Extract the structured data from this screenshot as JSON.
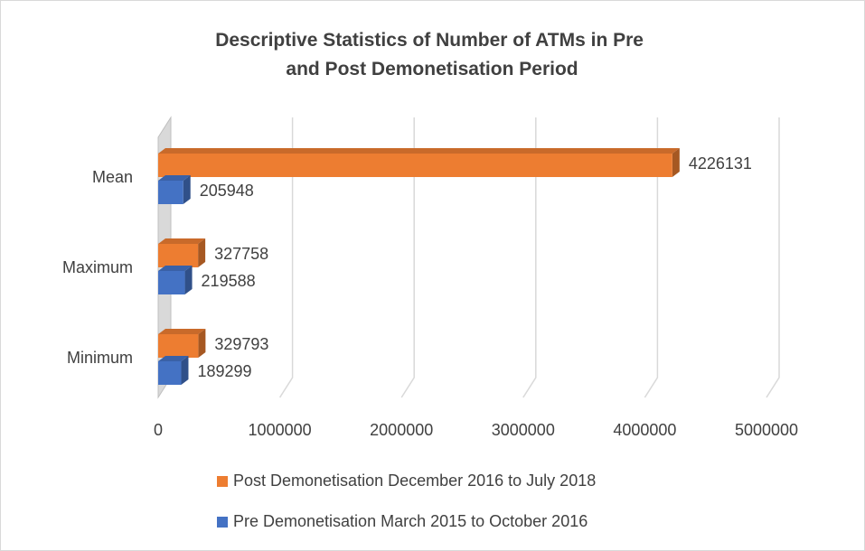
{
  "chart_data": {
    "type": "bar3d_horizontal",
    "title": "Descriptive Statistics of Number of ATMs in Pre and Post Demonetisation Period",
    "categories": [
      "Mean",
      "Maximum",
      "Minimum"
    ],
    "series": [
      {
        "name": "Post Demonetisation December 2016 to July 2018",
        "color": "#ed7d31",
        "values": [
          4226131,
          327758,
          329793
        ]
      },
      {
        "name": "Pre Demonetisation March 2015 to October 2016",
        "color": "#4472c4",
        "values": [
          205948,
          219588,
          189299
        ]
      }
    ],
    "xlim": [
      0,
      5000000
    ],
    "xticks": [
      0,
      1000000,
      2000000,
      3000000,
      4000000,
      5000000
    ],
    "grid": true,
    "legend": "bottom"
  }
}
